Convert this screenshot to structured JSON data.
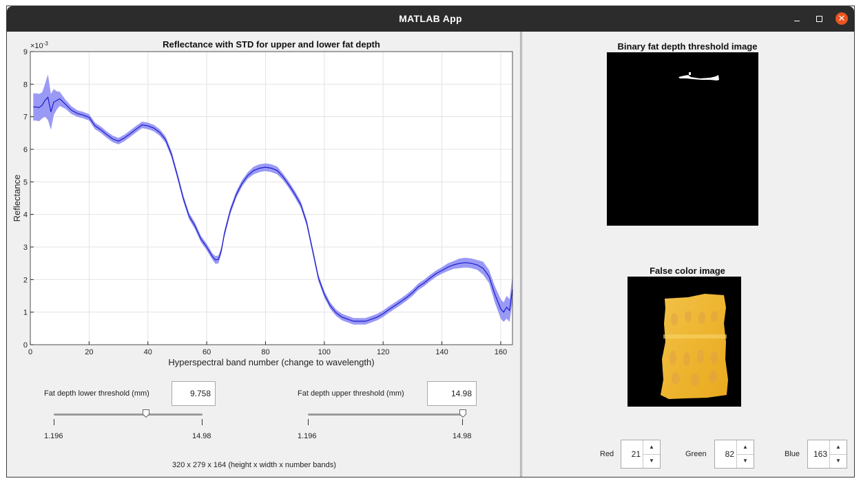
{
  "window": {
    "title": "MATLAB App"
  },
  "plot": {
    "title": "Reflectance with STD for upper and lower fat depth",
    "xlabel": "Hyperspectral band number (change to wavelength)",
    "ylabel": "Reflectance",
    "exponent_label": "×10",
    "exponent_power": "-3",
    "x_ticks": [
      "0",
      "20",
      "40",
      "60",
      "80",
      "100",
      "120",
      "140",
      "160"
    ],
    "y_ticks": [
      "0",
      "1",
      "2",
      "3",
      "4",
      "5",
      "6",
      "7",
      "8",
      "9"
    ]
  },
  "chart_data": {
    "type": "line",
    "title": "Reflectance with STD for upper and lower fat depth",
    "xlabel": "Hyperspectral band number (change to wavelength)",
    "ylabel": "Reflectance",
    "xlim": [
      0,
      164
    ],
    "ylim": [
      0,
      0.009
    ],
    "y_scale_label": "×10^-3",
    "grid": true,
    "series": [
      {
        "x": [
          1,
          2,
          3,
          4,
          5,
          6,
          7,
          8,
          9,
          10,
          12,
          14,
          16,
          18,
          20,
          22,
          24,
          26,
          28,
          30,
          32,
          34,
          36,
          38,
          40,
          42,
          44,
          46,
          48,
          50,
          52,
          54,
          56,
          58,
          60,
          62,
          63,
          64,
          65,
          66,
          68,
          70,
          72,
          74,
          76,
          78,
          80,
          82,
          84,
          86,
          88,
          90,
          92,
          94,
          96,
          98,
          100,
          102,
          104,
          106,
          108,
          110,
          112,
          114,
          116,
          118,
          120,
          122,
          124,
          126,
          128,
          130,
          132,
          134,
          136,
          138,
          140,
          142,
          144,
          146,
          148,
          150,
          152,
          154,
          156,
          158,
          160,
          161,
          162,
          163,
          164
        ],
        "values": [
          7.3,
          7.3,
          7.28,
          7.35,
          7.5,
          7.6,
          7.15,
          7.45,
          7.5,
          7.55,
          7.38,
          7.2,
          7.1,
          7.05,
          6.98,
          6.72,
          6.6,
          6.45,
          6.32,
          6.25,
          6.35,
          6.48,
          6.62,
          6.75,
          6.72,
          6.65,
          6.52,
          6.3,
          5.85,
          5.2,
          4.5,
          3.95,
          3.65,
          3.25,
          3.0,
          2.7,
          2.6,
          2.62,
          2.9,
          3.4,
          4.1,
          4.6,
          4.95,
          5.2,
          5.35,
          5.42,
          5.45,
          5.42,
          5.35,
          5.15,
          4.9,
          4.62,
          4.3,
          3.75,
          2.9,
          2.05,
          1.55,
          1.2,
          0.98,
          0.85,
          0.78,
          0.72,
          0.72,
          0.72,
          0.78,
          0.85,
          0.95,
          1.08,
          1.2,
          1.32,
          1.45,
          1.6,
          1.78,
          1.9,
          2.05,
          2.18,
          2.28,
          2.38,
          2.45,
          2.5,
          2.52,
          2.5,
          2.45,
          2.35,
          2.1,
          1.55,
          1.1,
          1.0,
          1.15,
          1.05,
          1.7
        ],
        "std": [
          0.42,
          0.42,
          0.42,
          0.4,
          0.5,
          0.7,
          0.55,
          0.4,
          0.28,
          0.22,
          0.14,
          0.12,
          0.1,
          0.1,
          0.1,
          0.1,
          0.1,
          0.1,
          0.1,
          0.1,
          0.1,
          0.1,
          0.1,
          0.1,
          0.1,
          0.1,
          0.1,
          0.1,
          0.1,
          0.1,
          0.1,
          0.1,
          0.1,
          0.1,
          0.1,
          0.1,
          0.12,
          0.12,
          0.1,
          0.1,
          0.1,
          0.1,
          0.1,
          0.1,
          0.12,
          0.12,
          0.12,
          0.12,
          0.12,
          0.1,
          0.1,
          0.1,
          0.1,
          0.1,
          0.1,
          0.1,
          0.1,
          0.1,
          0.1,
          0.1,
          0.1,
          0.1,
          0.1,
          0.1,
          0.1,
          0.1,
          0.1,
          0.1,
          0.1,
          0.1,
          0.1,
          0.1,
          0.1,
          0.1,
          0.1,
          0.1,
          0.1,
          0.12,
          0.12,
          0.15,
          0.15,
          0.15,
          0.15,
          0.2,
          0.2,
          0.25,
          0.3,
          0.3,
          0.35,
          0.35,
          0.4
        ]
      }
    ]
  },
  "controls": {
    "lower_label": "Fat depth lower threshold (mm)",
    "lower_value": "9.758",
    "upper_label": "Fat depth upper threshold (mm)",
    "upper_value": "14.98",
    "slider_min": "1.196",
    "slider_max": "14.98",
    "lower_slider_fraction": 0.621,
    "upper_slider_fraction": 1.0,
    "dims_text": "320 x 279 x 164 (height x width x number bands)"
  },
  "binary_image": {
    "title": "Binary fat depth threshold image"
  },
  "false_color": {
    "title": "False color image"
  },
  "rgb": {
    "red_label": "Red",
    "red_value": "21",
    "green_label": "Green",
    "green_value": "82",
    "blue_label": "Blue",
    "blue_value": "163"
  },
  "colors": {
    "line": "#1a1acc",
    "band": "#9a9af5",
    "titlebar": "#2c2c2c",
    "close": "#e95420"
  }
}
